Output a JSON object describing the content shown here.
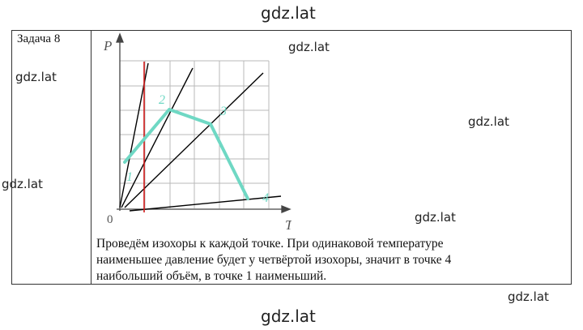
{
  "watermarks": {
    "top": "gdz.lat",
    "upper_center": "gdz.lat",
    "left_upper": "gdz.lat",
    "right_middle": "gdz.lat",
    "left_middle": "gdz.lat",
    "lower_center": "gdz.lat",
    "right_bottom": "gdz.lat",
    "bottom": "gdz.lat"
  },
  "task": {
    "label": "Задача 8"
  },
  "graph": {
    "axis_p": "P",
    "axis_t": "T",
    "origin": "0",
    "point_labels": [
      "1",
      "2",
      "3",
      "4"
    ],
    "colors": {
      "path": "#6fd8c4",
      "marker": "#d11a1a",
      "lines": "#000000",
      "grid": "#b8b8b8"
    }
  },
  "explanation": {
    "lines": [
      "Проведём изохоры к каждой точке. При одинаковой температуре",
      "наименьшее давление будет у четвёртой изохоры, значит в точке 4",
      "наибольший объём, в точке 1 наименьший."
    ]
  }
}
